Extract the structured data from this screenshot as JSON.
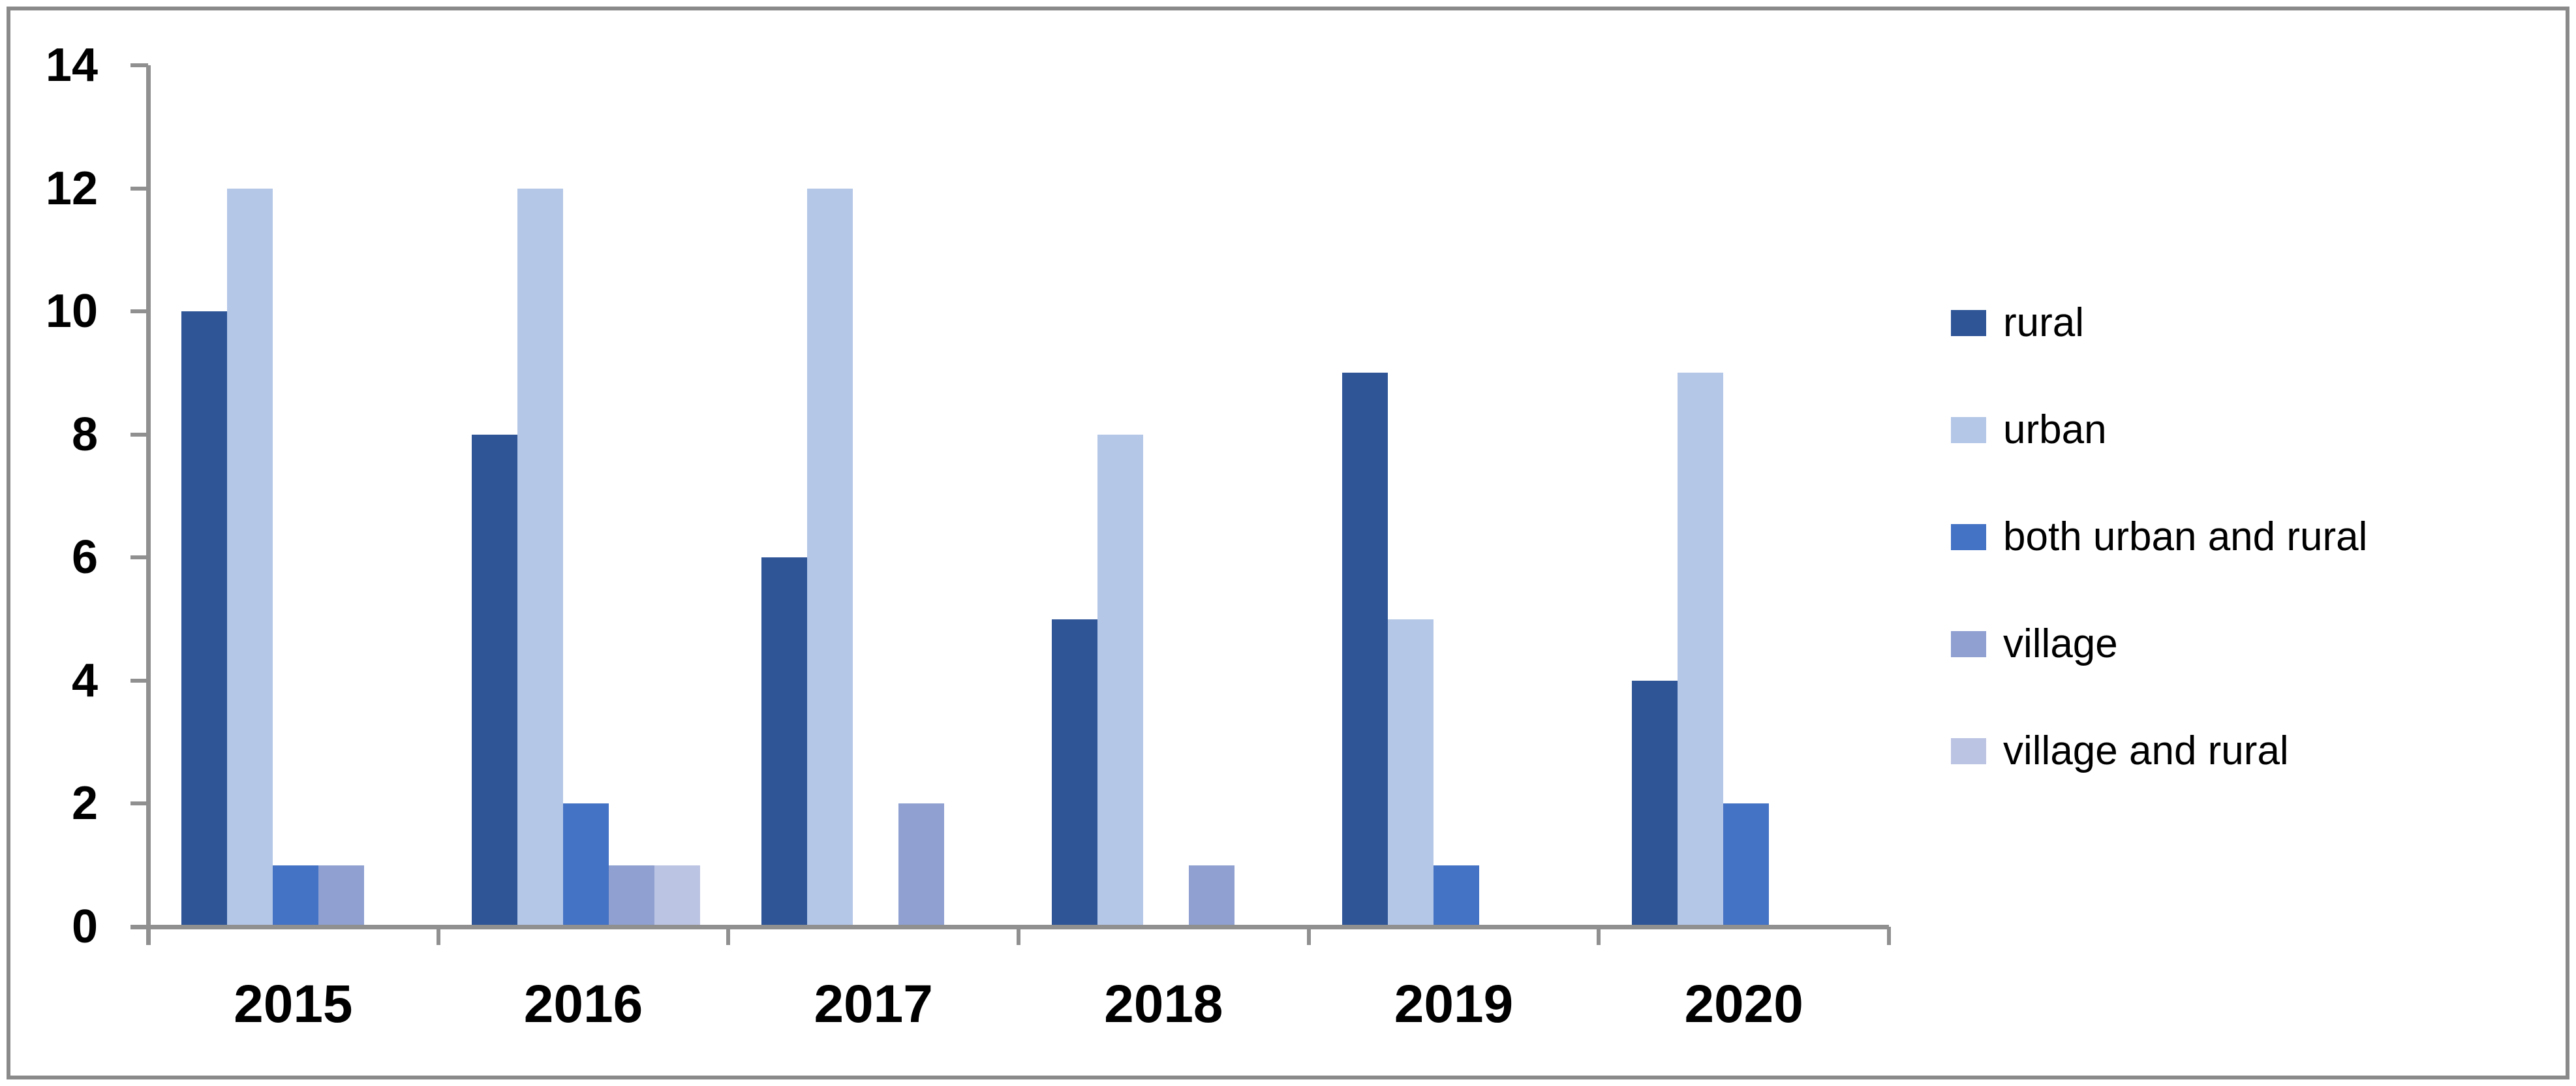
{
  "chart_data": {
    "type": "bar",
    "title": "",
    "categories": [
      "2015",
      "2016",
      "2017",
      "2018",
      "2019",
      "2020"
    ],
    "series": [
      {
        "name": "rural",
        "color": "#2F5597",
        "values": [
          10,
          8,
          6,
          5,
          9,
          4
        ]
      },
      {
        "name": "urban",
        "color": "#B4C7E7",
        "values": [
          12,
          12,
          12,
          8,
          5,
          9
        ]
      },
      {
        "name": "both urban and rural",
        "color": "#4472C4",
        "values": [
          1,
          2,
          0,
          0,
          1,
          2
        ]
      },
      {
        "name": "village",
        "color": "#8FA0D1",
        "values": [
          1,
          1,
          2,
          1,
          0,
          0
        ]
      },
      {
        "name": "village and rural",
        "color": "#BCC4E3",
        "values": [
          0,
          1,
          0,
          0,
          0,
          0
        ]
      }
    ],
    "y_axis": {
      "min": 0,
      "max": 14,
      "step": 2,
      "tick_labels": [
        "0",
        "2",
        "4",
        "6",
        "8",
        "10",
        "12",
        "14"
      ]
    },
    "x_axis": {
      "tick_labels": [
        "2015",
        "2016",
        "2017",
        "2018",
        "2019",
        "2020"
      ]
    },
    "legend_position": "right",
    "grid": false
  },
  "colors": {
    "axis": "#909090",
    "frame_border": "#8A8A8A",
    "background": "#FFFFFF",
    "text": "#000000"
  }
}
